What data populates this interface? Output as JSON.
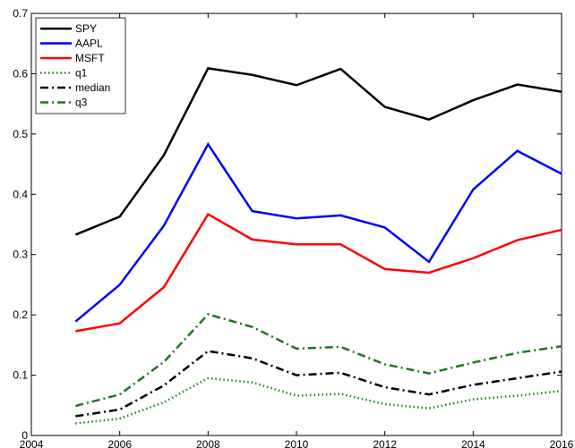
{
  "chart_data": {
    "type": "line",
    "x": [
      2005,
      2006,
      2007,
      2008,
      2009,
      2010,
      2011,
      2012,
      2013,
      2014,
      2015,
      2016
    ],
    "series": [
      {
        "name": "SPY",
        "color": "#000000",
        "style": "solid",
        "values": [
          0.333,
          0.363,
          0.465,
          0.609,
          0.598,
          0.581,
          0.608,
          0.545,
          0.524,
          0.556,
          0.582,
          0.57
        ]
      },
      {
        "name": "AAPL",
        "color": "#0000ff",
        "style": "solid",
        "values": [
          0.189,
          0.25,
          0.348,
          0.483,
          0.372,
          0.36,
          0.365,
          0.345,
          0.288,
          0.408,
          0.472,
          0.434
        ]
      },
      {
        "name": "MSFT",
        "color": "#ff0000",
        "style": "solid",
        "values": [
          0.173,
          0.186,
          0.246,
          0.367,
          0.325,
          0.317,
          0.317,
          0.276,
          0.27,
          0.294,
          0.324,
          0.341
        ]
      },
      {
        "name": "q1",
        "color": "#1a8a1a",
        "style": "dotted",
        "values": [
          0.02,
          0.028,
          0.055,
          0.095,
          0.088,
          0.066,
          0.069,
          0.052,
          0.045,
          0.06,
          0.066,
          0.074
        ]
      },
      {
        "name": "median",
        "color": "#000000",
        "style": "dashdot",
        "values": [
          0.032,
          0.043,
          0.083,
          0.14,
          0.128,
          0.1,
          0.104,
          0.08,
          0.068,
          0.084,
          0.095,
          0.106
        ]
      },
      {
        "name": "q3",
        "color": "#1a7a1a",
        "style": "dashdot",
        "values": [
          0.049,
          0.068,
          0.122,
          0.201,
          0.18,
          0.144,
          0.147,
          0.118,
          0.103,
          0.121,
          0.137,
          0.148
        ]
      }
    ],
    "xlim": [
      2004,
      2016
    ],
    "xticks": [
      2004,
      2006,
      2008,
      2010,
      2012,
      2014,
      2016
    ],
    "ylim": [
      0,
      0.7
    ],
    "yticks": [
      0,
      0.1,
      0.2,
      0.3,
      0.4,
      0.5,
      0.6,
      0.7
    ],
    "grid": false,
    "legend": "upper-left"
  }
}
